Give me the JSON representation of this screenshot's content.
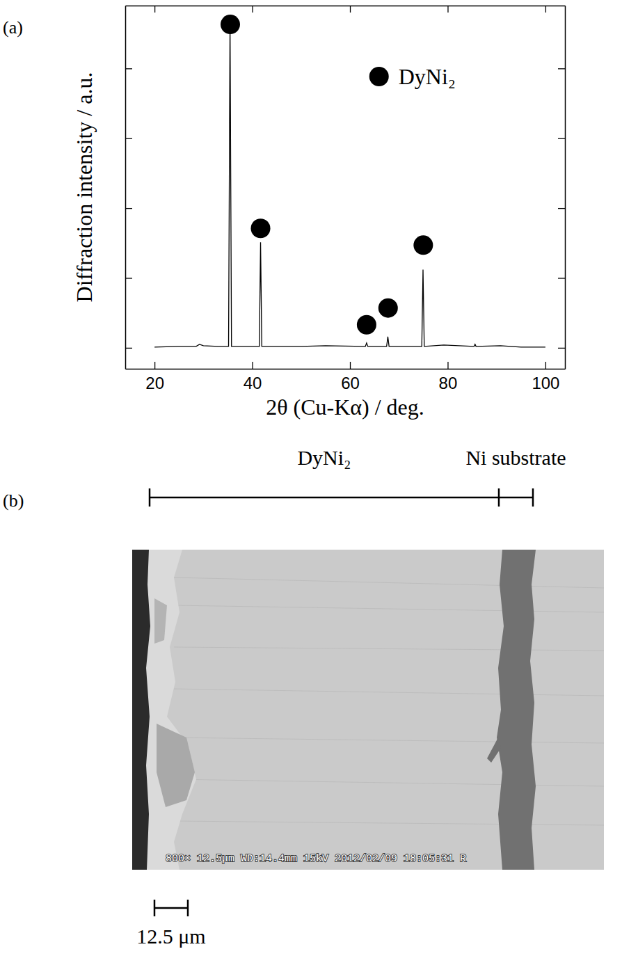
{
  "chart_data": {
    "type": "line",
    "panel_label": "(a)",
    "x_label": "2θ (Cu-Kα) / deg.",
    "y_label": "Diffraction intensity / a.u.",
    "xlim": [
      14,
      104
    ],
    "xticks": [
      20,
      40,
      60,
      80,
      100
    ],
    "ylim": [
      -0.3,
      4.9
    ],
    "yticks": [
      0,
      1,
      2,
      3,
      4
    ],
    "tick_labels": "x",
    "legend": "upper right",
    "series": [
      {
        "type": "line",
        "color": "#000000",
        "line_style": "solid",
        "x": [
          20,
          25,
          28.5,
          29.2,
          30,
          33,
          35.15,
          35.45,
          35.75,
          38,
          41.45,
          41.7,
          41.95,
          50,
          55,
          63.15,
          63.4,
          63.65,
          67.5,
          67.75,
          68.0,
          74.7,
          74.95,
          75.2,
          79.2,
          85.4,
          85.6,
          85.8,
          90.8,
          95,
          100
        ],
        "values": [
          0.01,
          0.02,
          0.02,
          0.05,
          0.03,
          0.02,
          0.02,
          4.68,
          0.02,
          0.02,
          0.02,
          1.51,
          0.02,
          0.02,
          0.03,
          0.02,
          0.07,
          0.02,
          0.02,
          0.16,
          0.02,
          0.02,
          1.12,
          0.02,
          0.04,
          0.02,
          0.05,
          0.02,
          0.03,
          0.01,
          0.01
        ]
      },
      {
        "type": "scatter",
        "name": "DyNi₂",
        "color": "#000000",
        "marker": "circle",
        "x": [
          35.5,
          41.7,
          63.4,
          67.8,
          75.0
        ],
        "values": [
          4.63,
          1.71,
          0.33,
          0.57,
          1.47
        ]
      }
    ]
  },
  "micrograph": {
    "panel_label": "(b)",
    "layers": [
      {
        "label": "DyNi₂"
      },
      {
        "label": "Ni substrate"
      }
    ],
    "info_bar": "800× 12.5μm WD:14.4mm 15kV 2012/02/09 18:05:31 R",
    "scale_bar": "12.5 μm"
  }
}
